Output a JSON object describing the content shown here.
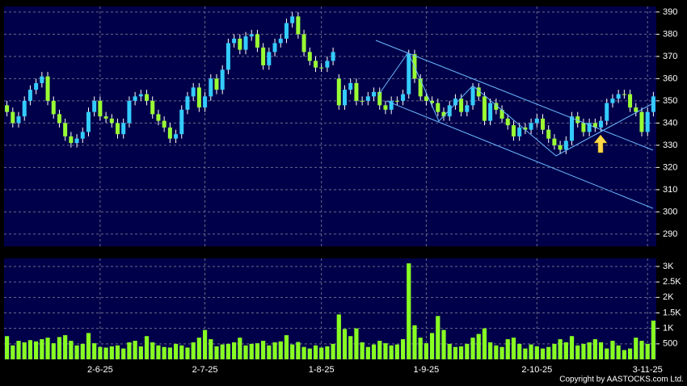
{
  "copyright": "Copyright by AASTOCKS.com Ltd.",
  "chart_data": [
    {
      "type": "candlestick",
      "up_color": "#33ccff",
      "down_color": "#99ff33",
      "ylim": [
        284.5,
        392.5
      ],
      "yticks": [
        290,
        300,
        310,
        320,
        330,
        340,
        350,
        360,
        370,
        380,
        390
      ],
      "grid": true,
      "open": [
        348,
        345,
        340,
        343,
        350,
        355,
        358,
        361,
        350,
        344,
        340,
        334,
        331,
        333,
        336,
        345,
        350,
        343,
        342,
        340,
        335,
        340,
        350,
        352,
        353,
        350,
        344,
        341,
        338,
        333,
        335,
        346,
        352,
        356,
        347,
        352,
        360,
        355,
        364,
        376,
        378,
        373,
        379,
        380,
        374,
        366,
        372,
        376,
        378,
        385,
        388,
        380,
        372,
        368,
        365,
        365,
        368,
        360,
        348,
        355,
        358,
        350,
        350,
        352,
        354,
        348,
        346,
        350,
        350,
        353,
        371,
        360,
        352,
        350,
        349,
        345,
        343,
        348,
        351,
        345,
        348,
        356,
        352,
        341,
        349,
        346,
        342,
        339,
        334,
        338,
        337,
        340,
        342,
        337,
        333,
        330,
        328,
        332,
        343,
        340,
        336,
        340,
        338,
        341,
        349,
        351,
        353,
        353,
        347,
        345,
        336,
        345
      ],
      "high": [
        350,
        347,
        345,
        352,
        357,
        360,
        363,
        363,
        352,
        346,
        342,
        336,
        335,
        338,
        347,
        352,
        352,
        345,
        344,
        342,
        342,
        352,
        354,
        355,
        355,
        352,
        346,
        343,
        340,
        337,
        348,
        354,
        358,
        358,
        354,
        362,
        362,
        366,
        378,
        380,
        380,
        381,
        382,
        382,
        376,
        374,
        378,
        380,
        387,
        390,
        390,
        382,
        374,
        370,
        367,
        370,
        374,
        362,
        357,
        360,
        360,
        352,
        354,
        356,
        356,
        350,
        352,
        352,
        355,
        373,
        373,
        362,
        354,
        352,
        351,
        347,
        350,
        353,
        353,
        350,
        358,
        358,
        354,
        351,
        351,
        348,
        344,
        341,
        340,
        340,
        342,
        344,
        344,
        339,
        335,
        332,
        334,
        345,
        345,
        342,
        342,
        342,
        343,
        351,
        353,
        355,
        355,
        355,
        349,
        347,
        347,
        354
      ],
      "low": [
        343,
        338,
        338,
        341,
        348,
        353,
        356,
        348,
        342,
        338,
        332,
        329,
        329,
        331,
        334,
        343,
        341,
        340,
        338,
        333,
        333,
        338,
        348,
        350,
        348,
        342,
        339,
        336,
        331,
        331,
        333,
        344,
        350,
        345,
        345,
        350,
        353,
        353,
        362,
        374,
        371,
        371,
        377,
        372,
        364,
        364,
        370,
        374,
        376,
        383,
        378,
        370,
        366,
        363,
        363,
        363,
        366,
        346,
        346,
        353,
        348,
        348,
        348,
        350,
        346,
        344,
        344,
        348,
        348,
        351,
        358,
        350,
        348,
        347,
        343,
        341,
        341,
        346,
        343,
        343,
        346,
        350,
        339,
        339,
        344,
        340,
        337,
        332,
        332,
        335,
        335,
        338,
        335,
        331,
        328,
        326,
        326,
        330,
        338,
        334,
        334,
        336,
        336,
        339,
        347,
        349,
        351,
        345,
        343,
        334,
        334,
        343
      ],
      "close": [
        345,
        340,
        343,
        350,
        355,
        358,
        361,
        350,
        344,
        340,
        334,
        331,
        333,
        336,
        345,
        350,
        343,
        342,
        340,
        335,
        340,
        350,
        352,
        353,
        350,
        344,
        341,
        338,
        333,
        335,
        346,
        352,
        356,
        347,
        352,
        360,
        355,
        364,
        376,
        378,
        373,
        379,
        380,
        374,
        366,
        372,
        376,
        378,
        385,
        388,
        380,
        372,
        368,
        365,
        365,
        368,
        372,
        348,
        355,
        358,
        350,
        350,
        352,
        354,
        348,
        346,
        350,
        350,
        353,
        371,
        360,
        352,
        350,
        349,
        345,
        343,
        348,
        351,
        345,
        348,
        356,
        352,
        341,
        349,
        346,
        342,
        339,
        334,
        338,
        337,
        340,
        342,
        337,
        333,
        330,
        328,
        332,
        343,
        340,
        336,
        340,
        338,
        341,
        349,
        351,
        353,
        353,
        347,
        345,
        336,
        345,
        352
      ]
    },
    {
      "type": "bar",
      "color": "#88ff22",
      "ylim": [
        0,
        3260
      ],
      "yticks": [
        {
          "value": 3000,
          "label": "3K"
        },
        {
          "value": 2500,
          "label": "2.5K"
        },
        {
          "value": 2000,
          "label": "2K"
        },
        {
          "value": 1500,
          "label": "1.5K"
        },
        {
          "value": 1000,
          "label": "1K"
        },
        500
      ],
      "grid": true,
      "categories": [
        null,
        null,
        null,
        null,
        null,
        null,
        null,
        null,
        null,
        null,
        null,
        null,
        null,
        null,
        null,
        null,
        "2-6-25",
        null,
        null,
        null,
        null,
        null,
        null,
        null,
        null,
        null,
        null,
        null,
        null,
        null,
        null,
        null,
        null,
        null,
        "2-7-25",
        null,
        null,
        null,
        null,
        null,
        null,
        null,
        null,
        null,
        null,
        null,
        null,
        null,
        null,
        null,
        null,
        null,
        null,
        null,
        "1-8-25",
        null,
        null,
        null,
        null,
        null,
        null,
        null,
        null,
        null,
        null,
        null,
        null,
        null,
        null,
        null,
        null,
        null,
        "1-9-25",
        null,
        null,
        null,
        null,
        null,
        null,
        null,
        null,
        null,
        null,
        null,
        null,
        null,
        null,
        null,
        null,
        null,
        null,
        "2-10-25",
        null,
        null,
        null,
        null,
        null,
        null,
        null,
        null,
        null,
        null,
        null,
        null,
        null,
        null,
        null,
        null,
        null,
        null,
        "3-11-25",
        null
      ],
      "values": [
        750,
        450,
        600,
        550,
        620,
        580,
        650,
        700,
        520,
        720,
        780,
        600,
        450,
        500,
        850,
        520,
        400,
        380,
        420,
        450,
        350,
        550,
        600,
        420,
        750,
        550,
        450,
        400,
        380,
        500,
        450,
        380,
        550,
        700,
        950,
        650,
        420,
        480,
        500,
        550,
        700,
        450,
        500,
        520,
        600,
        450,
        550,
        580,
        780,
        480,
        560,
        400,
        350,
        450,
        380,
        420,
        500,
        1450,
        980,
        750,
        1000,
        550,
        400,
        480,
        600,
        520,
        450,
        480,
        650,
        3100,
        1100,
        700,
        520,
        850,
        1400,
        950,
        500,
        400,
        420,
        500,
        700,
        820,
        1000,
        550,
        450,
        400,
        650,
        700,
        500,
        350,
        480,
        420,
        350,
        400,
        500,
        650,
        550,
        750,
        450,
        500,
        550,
        650,
        550,
        350,
        600,
        450,
        300,
        350,
        700,
        600,
        500,
        1250
      ]
    }
  ]
}
